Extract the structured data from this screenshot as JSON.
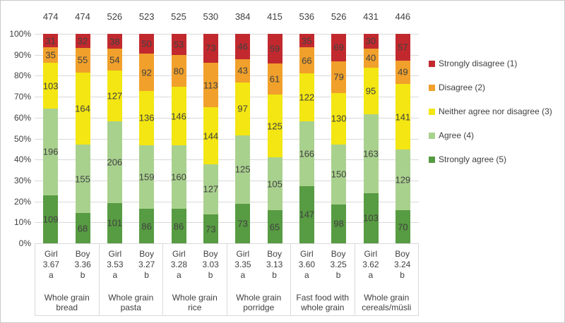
{
  "figure": {
    "background": "#ffffff",
    "border_color": "#c9c9c9",
    "text_color": "#404040",
    "gridline_color": "#d9d9d9"
  },
  "chart_data": {
    "type": "bar",
    "subtype": "100-percent-stacked-column",
    "title": "",
    "xlabel": "",
    "ylabel": "",
    "grid": true,
    "legend_position": "right",
    "y_axis": {
      "min": 0,
      "max": 100,
      "tick_step": 10,
      "ticks": [
        "100%",
        "90%",
        "80%",
        "70%",
        "60%",
        "50%",
        "40%",
        "30%",
        "20%",
        "10%",
        "0%"
      ]
    },
    "stack_order_bottom_to_top": [
      "strongly_agree",
      "agree",
      "neither",
      "disagree",
      "strongly_disagree"
    ],
    "legend": [
      {
        "key": "strongly_disagree",
        "label": "Strongly disagree (1)",
        "color": "#c2292e"
      },
      {
        "key": "disagree",
        "label": "Disagree (2)",
        "color": "#f0a02b"
      },
      {
        "key": "neither",
        "label": "Neither agree nor disagree (3)",
        "color": "#f3e612"
      },
      {
        "key": "agree",
        "label": "Agree (4)",
        "color": "#a9d18e"
      },
      {
        "key": "strongly_agree",
        "label": "Strongly agree (5)",
        "color": "#579b42"
      }
    ],
    "groups": [
      {
        "category": "Whole grain bread",
        "bars": [
          {
            "gender": "Girl",
            "mean": "3.67",
            "sig": "a",
            "total": 474,
            "segments": {
              "strongly_agree": 109,
              "agree": 196,
              "neither": 103,
              "disagree": 35,
              "strongly_disagree": 31
            }
          },
          {
            "gender": "Boy",
            "mean": "3.36",
            "sig": "b",
            "total": 474,
            "segments": {
              "strongly_agree": 68,
              "agree": 155,
              "neither": 164,
              "disagree": 55,
              "strongly_disagree": 32
            }
          }
        ]
      },
      {
        "category": "Whole grain pasta",
        "bars": [
          {
            "gender": "Girl",
            "mean": "3.53",
            "sig": "a",
            "total": 526,
            "segments": {
              "strongly_agree": 101,
              "agree": 206,
              "neither": 127,
              "disagree": 54,
              "strongly_disagree": 38
            }
          },
          {
            "gender": "Boy",
            "mean": "3.27",
            "sig": "b",
            "total": 523,
            "segments": {
              "strongly_agree": 86,
              "agree": 159,
              "neither": 136,
              "disagree": 92,
              "strongly_disagree": 50
            }
          }
        ]
      },
      {
        "category": "Whole grain rice",
        "bars": [
          {
            "gender": "Girl",
            "mean": "3.28",
            "sig": "a",
            "total": 525,
            "segments": {
              "strongly_agree": 86,
              "agree": 160,
              "neither": 146,
              "disagree": 80,
              "strongly_disagree": 53
            }
          },
          {
            "gender": "Boy",
            "mean": "3.03",
            "sig": "b",
            "total": 530,
            "segments": {
              "strongly_agree": 73,
              "agree": 127,
              "neither": 144,
              "disagree": 113,
              "strongly_disagree": 73
            }
          }
        ]
      },
      {
        "category": "Whole grain porridge",
        "bars": [
          {
            "gender": "Girl",
            "mean": "3.35",
            "sig": "a",
            "total": 384,
            "segments": {
              "strongly_agree": 73,
              "agree": 125,
              "neither": 97,
              "disagree": 43,
              "strongly_disagree": 46
            }
          },
          {
            "gender": "Boy",
            "mean": "3.13",
            "sig": "b",
            "total": 415,
            "segments": {
              "strongly_agree": 65,
              "agree": 105,
              "neither": 125,
              "disagree": 61,
              "strongly_disagree": 59
            }
          }
        ]
      },
      {
        "category": "Fast food with whole grain",
        "bars": [
          {
            "gender": "Girl",
            "mean": "3.60",
            "sig": "a",
            "total": 536,
            "segments": {
              "strongly_agree": 147,
              "agree": 166,
              "neither": 122,
              "disagree": 66,
              "strongly_disagree": 35
            }
          },
          {
            "gender": "Boy",
            "mean": "3.25",
            "sig": "b",
            "total": 526,
            "segments": {
              "strongly_agree": 98,
              "agree": 150,
              "neither": 130,
              "disagree": 79,
              "strongly_disagree": 69
            }
          }
        ]
      },
      {
        "category": "Whole grain cereals/müsli",
        "bars": [
          {
            "gender": "Girl",
            "mean": "3.62",
            "sig": "a",
            "total": 431,
            "segments": {
              "strongly_agree": 103,
              "agree": 163,
              "neither": 95,
              "disagree": 40,
              "strongly_disagree": 30
            }
          },
          {
            "gender": "Boy",
            "mean": "3.24",
            "sig": "b",
            "total": 446,
            "segments": {
              "strongly_agree": 70,
              "agree": 129,
              "neither": 141,
              "disagree": 49,
              "strongly_disagree": 57
            }
          }
        ]
      }
    ]
  }
}
